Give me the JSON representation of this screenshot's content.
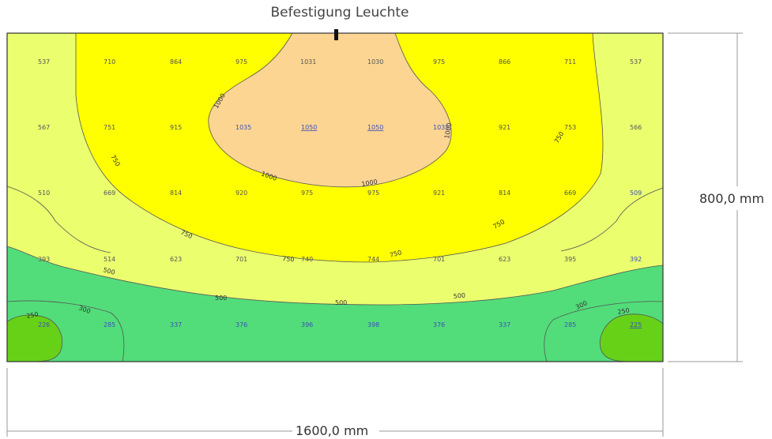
{
  "header": {
    "title": "Befestigung Leuchte"
  },
  "dimensions": {
    "height": "800,0 mm",
    "width": "1600,0 mm"
  },
  "colors": {
    "zone_1000": "#fcd592",
    "zone_750": "#ffff00",
    "zone_500": "#ebff6e",
    "zone_300": "#52dd7a",
    "zone_250": "#67d118",
    "outline": "#555555"
  },
  "grid_values": [
    [
      "537",
      "710",
      "864",
      "975",
      "1031",
      "1030",
      "975",
      "866",
      "711",
      "537"
    ],
    [
      "567",
      "751",
      "915",
      "1035",
      "1050",
      "1050",
      "1035",
      "921",
      "753",
      "566"
    ],
    [
      "510",
      "669",
      "814",
      "920",
      "975",
      "975",
      "921",
      "814",
      "669",
      "509"
    ],
    [
      "393",
      "514",
      "623",
      "701",
      "740",
      "744",
      "701",
      "623",
      "395",
      "392"
    ],
    [
      "226",
      "285",
      "337",
      "376",
      "396",
      "398",
      "376",
      "337",
      "285",
      "225"
    ]
  ],
  "contour_labels": [
    "1000",
    "1000",
    "1000",
    "1000",
    "750",
    "750",
    "750",
    "750",
    "750",
    "750",
    "500",
    "500",
    "500",
    "500",
    "300",
    "300",
    "250",
    "250"
  ]
}
